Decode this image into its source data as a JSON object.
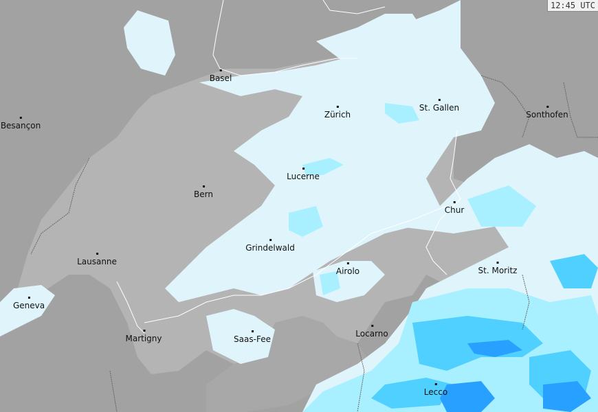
{
  "timestamp": "12:45 UTC",
  "colors": {
    "outside": "#a2a2a2",
    "country": "#b4b4b4",
    "precip_light": "#e0f5fb",
    "precip_moderate": "#a8f0ff",
    "precip_heavy": "#50d0ff",
    "precip_very_heavy": "#28a0ff",
    "border": "#ffffff"
  },
  "cities": [
    "Basel",
    "Besançon",
    "Zürich",
    "St. Gallen",
    "Sonthofen",
    "Lucerne",
    "Bern",
    "Chur",
    "Grindelwald",
    "Lausanne",
    "Airolo",
    "St. Moritz",
    "Geneva",
    "Locarno",
    "Martigny",
    "Saas-Fee",
    "Lecco"
  ]
}
